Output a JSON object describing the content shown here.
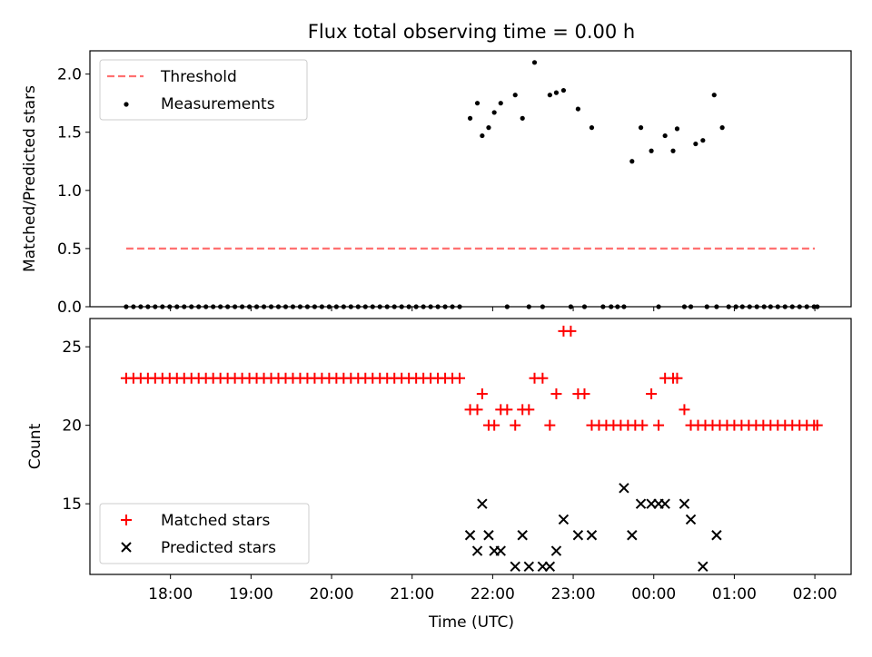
{
  "chart_data": [
    {
      "type": "scatter",
      "title": "Flux total observing time = 0.00 h",
      "ylabel": "Matched/Predicted stars",
      "xlabel": "",
      "ylim": [
        0,
        2.2
      ],
      "yticks": [
        0.0,
        0.5,
        1.0,
        1.5,
        2.0
      ],
      "ytick_labels": [
        "0.0",
        "0.5",
        "1.0",
        "1.5",
        "2.0"
      ],
      "grid": false,
      "legend_position": "top-left",
      "threshold": {
        "name": "Threshold",
        "value": 0.5,
        "x_start": 17.45,
        "x_end": 26.0,
        "color": "#ff7070"
      },
      "measurements": {
        "name": "Measurements",
        "color": "#000000",
        "x": [
          17.45,
          17.54,
          17.63,
          17.72,
          17.81,
          17.9,
          17.99,
          18.08,
          18.17,
          18.26,
          18.35,
          18.44,
          18.53,
          18.62,
          18.71,
          18.8,
          18.89,
          18.98,
          19.07,
          19.16,
          19.25,
          19.34,
          19.43,
          19.52,
          19.61,
          19.7,
          19.79,
          19.88,
          19.97,
          20.06,
          20.15,
          20.24,
          20.33,
          20.42,
          20.51,
          20.6,
          20.69,
          20.78,
          20.87,
          20.96,
          21.05,
          21.14,
          21.23,
          21.32,
          21.41,
          21.5,
          21.59,
          21.72,
          21.81,
          21.87,
          21.95,
          22.02,
          22.1,
          22.18,
          22.28,
          22.37,
          22.45,
          22.52,
          22.62,
          22.71,
          22.79,
          22.88,
          22.97,
          23.06,
          23.14,
          23.23,
          23.37,
          23.47,
          23.55,
          23.63,
          23.73,
          23.84,
          23.97,
          24.06,
          24.14,
          24.24,
          24.29,
          24.38,
          24.46,
          24.52,
          24.61,
          24.66,
          24.75,
          24.78,
          24.85,
          24.93,
          25.02,
          25.1,
          25.19,
          25.28,
          25.37,
          25.45,
          25.54,
          25.63,
          25.72,
          25.81,
          25.9,
          25.99,
          26.03
        ],
        "y": [
          0,
          0,
          0,
          0,
          0,
          0,
          0,
          0,
          0,
          0,
          0,
          0,
          0,
          0,
          0,
          0,
          0,
          0,
          0,
          0,
          0,
          0,
          0,
          0,
          0,
          0,
          0,
          0,
          0,
          0,
          0,
          0,
          0,
          0,
          0,
          0,
          0,
          0,
          0,
          0,
          0,
          0,
          0,
          0,
          0,
          0,
          0,
          1.62,
          1.75,
          1.47,
          1.54,
          1.67,
          1.75,
          0,
          1.82,
          1.62,
          0,
          2.1,
          0,
          1.82,
          1.84,
          1.86,
          0,
          1.7,
          0,
          1.54,
          0,
          0,
          0,
          0,
          1.25,
          1.54,
          1.34,
          0,
          1.47,
          1.34,
          1.53,
          0,
          0,
          1.4,
          1.43,
          0,
          1.82,
          0,
          1.54,
          0,
          0,
          0,
          0,
          0,
          0,
          0,
          0,
          0,
          0,
          0,
          0,
          0,
          0
        ]
      }
    },
    {
      "type": "scatter",
      "title": "",
      "ylabel": "Count",
      "xlabel": "Time (UTC)",
      "ylim": [
        10.5,
        26.8
      ],
      "yticks": [
        15,
        20,
        25
      ],
      "ytick_labels": [
        "15",
        "20",
        "25"
      ],
      "xlim": [
        17.0,
        26.45
      ],
      "xticks": [
        18,
        19,
        20,
        21,
        22,
        23,
        24,
        25,
        26
      ],
      "xtick_labels": [
        "18:00",
        "19:00",
        "20:00",
        "21:00",
        "22:00",
        "23:00",
        "00:00",
        "01:00",
        "02:00"
      ],
      "grid": false,
      "legend_position": "bottom-left",
      "series": [
        {
          "name": "Matched stars",
          "marker": "plus",
          "color": "#ff0000",
          "x": [
            17.45,
            17.54,
            17.63,
            17.72,
            17.81,
            17.9,
            17.99,
            18.08,
            18.17,
            18.26,
            18.35,
            18.44,
            18.53,
            18.62,
            18.71,
            18.8,
            18.89,
            18.98,
            19.07,
            19.16,
            19.25,
            19.34,
            19.43,
            19.52,
            19.61,
            19.7,
            19.79,
            19.88,
            19.97,
            20.06,
            20.15,
            20.24,
            20.33,
            20.42,
            20.51,
            20.6,
            20.69,
            20.78,
            20.87,
            20.96,
            21.05,
            21.14,
            21.23,
            21.32,
            21.41,
            21.5,
            21.59,
            21.72,
            21.81,
            21.87,
            21.95,
            22.02,
            22.1,
            22.18,
            22.28,
            22.37,
            22.45,
            22.52,
            22.62,
            22.71,
            22.79,
            22.88,
            22.97,
            23.06,
            23.14,
            23.23,
            23.32,
            23.41,
            23.5,
            23.59,
            23.68,
            23.77,
            23.86,
            23.97,
            24.06,
            24.14,
            24.24,
            24.29,
            24.38,
            24.46,
            24.55,
            24.64,
            24.73,
            24.82,
            24.91,
            25.0,
            25.09,
            25.18,
            25.27,
            25.36,
            25.45,
            25.54,
            25.63,
            25.72,
            25.81,
            25.9,
            25.99,
            26.03
          ],
          "y": [
            23,
            23,
            23,
            23,
            23,
            23,
            23,
            23,
            23,
            23,
            23,
            23,
            23,
            23,
            23,
            23,
            23,
            23,
            23,
            23,
            23,
            23,
            23,
            23,
            23,
            23,
            23,
            23,
            23,
            23,
            23,
            23,
            23,
            23,
            23,
            23,
            23,
            23,
            23,
            23,
            23,
            23,
            23,
            23,
            23,
            23,
            23,
            21,
            21,
            22,
            20,
            20,
            21,
            21,
            20,
            21,
            21,
            23,
            23,
            20,
            22,
            26,
            26,
            22,
            22,
            20,
            20,
            20,
            20,
            20,
            20,
            20,
            20,
            22,
            20,
            23,
            23,
            23,
            21,
            20,
            20,
            20,
            20,
            20,
            20,
            20,
            20,
            20,
            20,
            20,
            20,
            20,
            20,
            20,
            20,
            20,
            20,
            20
          ]
        },
        {
          "name": "Predicted stars",
          "marker": "x",
          "color": "#000000",
          "x": [
            21.72,
            21.81,
            21.87,
            21.95,
            22.02,
            22.1,
            22.28,
            22.37,
            22.45,
            22.62,
            22.71,
            22.79,
            22.88,
            23.06,
            23.23,
            23.63,
            23.73,
            23.84,
            23.97,
            24.06,
            24.14,
            24.38,
            24.46,
            24.61,
            24.78
          ],
          "y": [
            13,
            12,
            15,
            13,
            12,
            12,
            11,
            13,
            11,
            11,
            11,
            12,
            14,
            13,
            13,
            16,
            13,
            15,
            15,
            15,
            15,
            15,
            14,
            11,
            13
          ]
        }
      ]
    }
  ]
}
